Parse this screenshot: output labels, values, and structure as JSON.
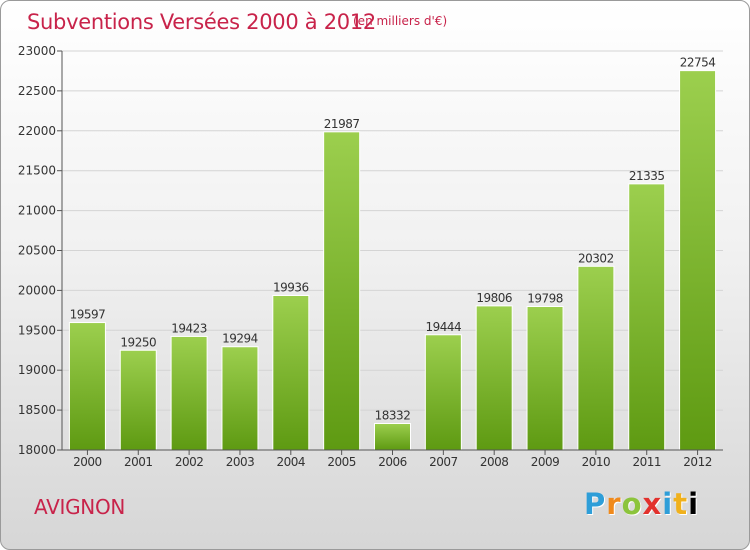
{
  "header": {
    "title": "Subventions Versées 2000 à 2012",
    "unit": "(en milliers d'€)"
  },
  "footer": {
    "city": "AVIGNON",
    "logo_letters": [
      "P",
      "r",
      "o",
      "x",
      "i",
      "t",
      "i"
    ]
  },
  "colors": {
    "accent": "#c8234a",
    "bar_light": "#9ccf4e",
    "bar_dark": "#5e9a12"
  },
  "chart_data": {
    "type": "bar",
    "title": "Subventions Versées 2000 à 2012",
    "xlabel": "",
    "ylabel": "",
    "categories": [
      "2000",
      "2001",
      "2002",
      "2003",
      "2004",
      "2005",
      "2006",
      "2007",
      "2008",
      "2009",
      "2010",
      "2011",
      "2012"
    ],
    "values": [
      19597,
      19250,
      19423,
      19294,
      19936,
      21987,
      18332,
      19444,
      19806,
      19798,
      20302,
      21335,
      22754
    ],
    "ylim": [
      18000,
      23000
    ],
    "yticks": [
      18000,
      18500,
      19000,
      19500,
      20000,
      20500,
      21000,
      21500,
      22000,
      22500,
      23000
    ],
    "grid": true,
    "data_labels": true
  }
}
